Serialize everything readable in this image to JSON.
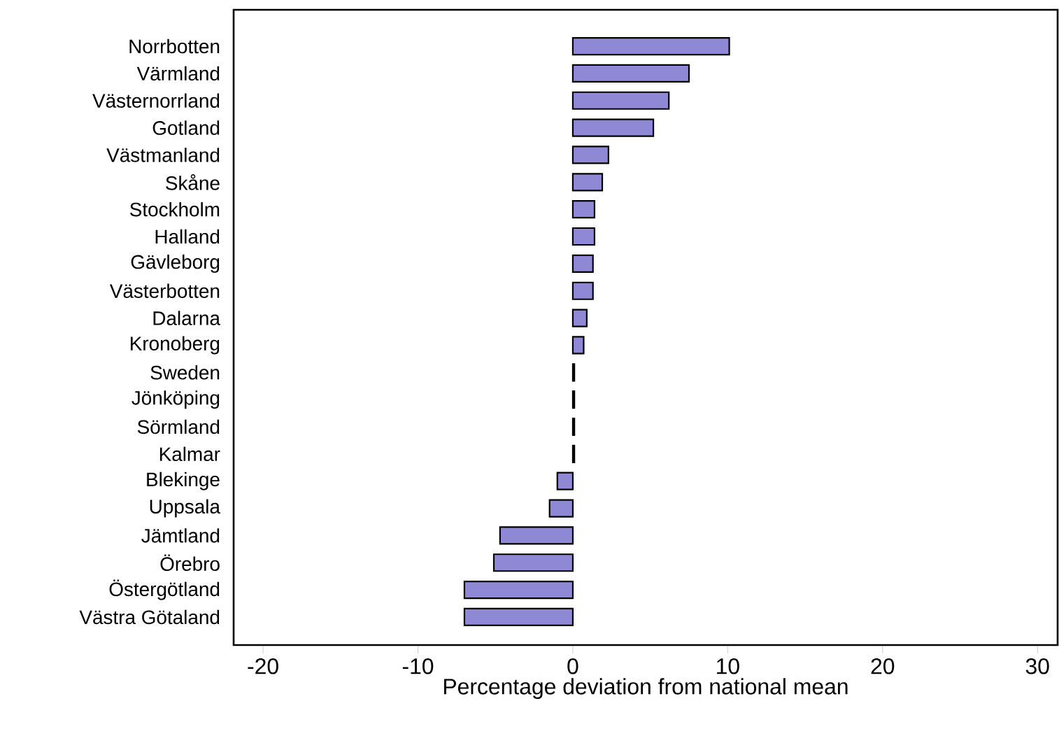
{
  "chart_data": {
    "type": "bar",
    "orientation": "horizontal",
    "xlabel": "Percentage deviation from national mean",
    "categories": [
      "Norrbotten",
      "Värmland",
      "Västernorrland",
      "Gotland",
      "Västmanland",
      "Skåne",
      "Stockholm",
      "Halland",
      "Gävleborg",
      "Västerbotten",
      "Dalarna",
      "Kronoberg",
      "Sweden",
      "Jönköping",
      "Sörmland",
      "Kalmar",
      "Blekinge",
      "Uppsala",
      "Jämtland",
      "Örebro",
      "Östergötland",
      "Västra Götaland"
    ],
    "values": [
      10.1,
      7.5,
      6.2,
      5.2,
      2.3,
      1.9,
      1.4,
      1.4,
      1.3,
      1.3,
      0.9,
      0.7,
      0.1,
      0.1,
      0.1,
      0.1,
      -1.0,
      -1.5,
      -4.7,
      -5.1,
      -7.0,
      -7.0
    ],
    "colors": [
      "#8f88d4",
      "#8f88d4",
      "#8f88d4",
      "#8f88d4",
      "#8f88d4",
      "#8f88d4",
      "#8f88d4",
      "#8f88d4",
      "#8f88d4",
      "#8f88d4",
      "#8f88d4",
      "#8f88d4",
      "#000000",
      "#000000",
      "#000000",
      "#000000",
      "#8f88d4",
      "#8f88d4",
      "#8f88d4",
      "#8f88d4",
      "#8f88d4",
      "#8f88d4"
    ],
    "xlim": [
      -21.9,
      31.3
    ],
    "xticks": [
      -20,
      -10,
      0,
      10,
      20,
      30
    ]
  }
}
